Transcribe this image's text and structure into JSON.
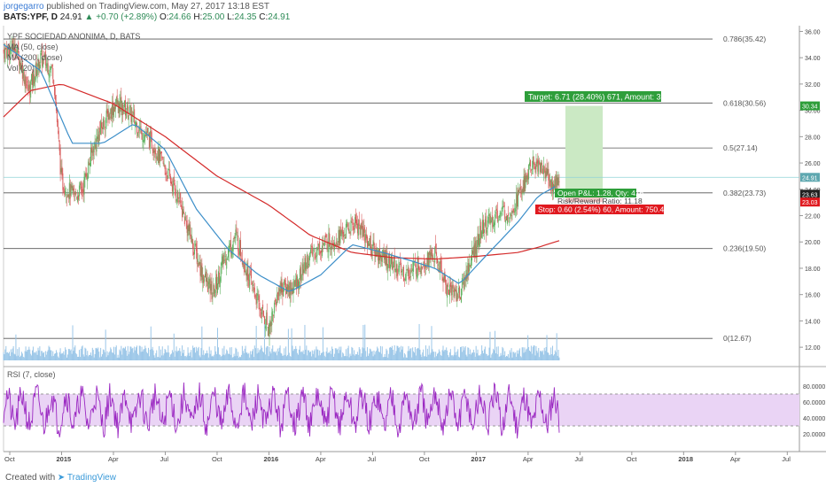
{
  "header": {
    "user": "jorgegarro",
    "published": "published on TradingView.com, May 27, 2017 13:18 EST",
    "symbol": "BATS:YPF, D",
    "price": "24.91",
    "change": "▲ +0.70 (+2.89%)",
    "o_label": "O:",
    "o_value": "24.66",
    "h_label": "H:",
    "h_value": "25.00",
    "l_label": "L:",
    "l_value": "24.35",
    "c_label": "C:",
    "c_value": "24.91"
  },
  "legend": {
    "title": "YPF SOCIEDAD ANONIMA, D, BATS",
    "ma50": "MA (50, close)",
    "ma200": "MA (200, close)",
    "vol": "Vol (20)",
    "rsi": "RSI (7, close)"
  },
  "footer": {
    "created_with": "Created with",
    "brand": "TradingView"
  },
  "colors": {
    "candle_up": "#5fb15f",
    "candle_down": "#d95a5a",
    "ma50": "#3d8fc9",
    "ma200": "#d42a2a",
    "fib": "#555555",
    "rsi": "#9b29c2",
    "rsi_band": "#ead4f5",
    "target_box": "#cbe9c4",
    "target_label": "#2e9e3a",
    "stop_label": "#e0191f"
  },
  "chart_data": [
    {
      "type": "candlestick",
      "title": "YPF SOCIEDAD ANONIMA, D, BATS",
      "x_ticks": [
        "Oct",
        "2015",
        "Apr",
        "Jul",
        "Oct",
        "2016",
        "Apr",
        "Jul",
        "Oct",
        "2017",
        "Apr",
        "Jul",
        "Oct",
        "2018",
        "Apr",
        "Jul"
      ],
      "y_ticks": [
        "36.00",
        "34.00",
        "32.00",
        "30.00",
        "28.00",
        "26.00",
        "24.00",
        "22.00",
        "20.00",
        "18.00",
        "16.00",
        "14.00",
        "12.00"
      ],
      "ylim": [
        11.0,
        36.3
      ],
      "fib_levels": [
        {
          "label": "0.786(35.42)",
          "value": 35.42
        },
        {
          "label": "0.618(30.56)",
          "value": 30.56
        },
        {
          "label": "0.5(27.14)",
          "value": 27.14
        },
        {
          "label": "0.382(23.73)",
          "value": 23.73
        },
        {
          "label": "0.236(19.50)",
          "value": 19.5
        },
        {
          "label": "0(12.67)",
          "value": 12.67
        }
      ],
      "price_series_anchors": [
        [
          2014.72,
          34.5
        ],
        [
          2014.78,
          34.8
        ],
        [
          2014.84,
          31.5
        ],
        [
          2014.9,
          34.0
        ],
        [
          2014.96,
          33.0
        ],
        [
          2015.0,
          24.5
        ],
        [
          2015.06,
          23.5
        ],
        [
          2015.1,
          24.0
        ],
        [
          2015.15,
          27.0
        ],
        [
          2015.2,
          29.0
        ],
        [
          2015.26,
          30.5
        ],
        [
          2015.32,
          30.0
        ],
        [
          2015.38,
          28.5
        ],
        [
          2015.44,
          27.5
        ],
        [
          2015.5,
          25.5
        ],
        [
          2015.56,
          23.5
        ],
        [
          2015.62,
          20.5
        ],
        [
          2015.68,
          17.5
        ],
        [
          2015.73,
          16.0
        ],
        [
          2015.78,
          18.5
        ],
        [
          2015.84,
          20.5
        ],
        [
          2015.9,
          17.5
        ],
        [
          2015.96,
          14.8
        ],
        [
          2016.0,
          13.5
        ],
        [
          2016.05,
          16.5
        ],
        [
          2016.12,
          16.5
        ],
        [
          2016.2,
          19.0
        ],
        [
          2016.28,
          20.0
        ],
        [
          2016.35,
          20.5
        ],
        [
          2016.42,
          21.5
        ],
        [
          2016.5,
          19.5
        ],
        [
          2016.58,
          18.5
        ],
        [
          2016.66,
          17.5
        ],
        [
          2016.74,
          18.5
        ],
        [
          2016.8,
          19.0
        ],
        [
          2016.86,
          16.5
        ],
        [
          2016.92,
          16.0
        ],
        [
          2016.97,
          18.5
        ],
        [
          2017.03,
          21.0
        ],
        [
          2017.1,
          22.0
        ],
        [
          2017.17,
          22.5
        ],
        [
          2017.22,
          24.0
        ],
        [
          2017.27,
          26.0
        ],
        [
          2017.33,
          25.5
        ],
        [
          2017.37,
          24.2
        ],
        [
          2017.4,
          24.91
        ]
      ],
      "ma200_anchors": [
        [
          2014.72,
          29.5
        ],
        [
          2014.85,
          31.5
        ],
        [
          2015.0,
          32.0
        ],
        [
          2015.25,
          30.5
        ],
        [
          2015.5,
          28.0
        ],
        [
          2015.75,
          25.0
        ],
        [
          2016.0,
          22.8
        ],
        [
          2016.2,
          20.5
        ],
        [
          2016.4,
          19.2
        ],
        [
          2016.6,
          18.8
        ],
        [
          2016.8,
          18.7
        ],
        [
          2017.0,
          18.9
        ],
        [
          2017.2,
          19.2
        ],
        [
          2017.3,
          19.6
        ],
        [
          2017.4,
          20.1
        ]
      ],
      "ma50_anchors": [
        [
          2014.72,
          35.0
        ],
        [
          2014.9,
          33.0
        ],
        [
          2015.05,
          27.5
        ],
        [
          2015.2,
          27.5
        ],
        [
          2015.35,
          29.0
        ],
        [
          2015.5,
          27.0
        ],
        [
          2015.65,
          22.5
        ],
        [
          2015.8,
          19.5
        ],
        [
          2015.95,
          17.5
        ],
        [
          2016.1,
          16.2
        ],
        [
          2016.25,
          17.5
        ],
        [
          2016.4,
          19.8
        ],
        [
          2016.55,
          19.2
        ],
        [
          2016.7,
          18.5
        ],
        [
          2016.8,
          18.0
        ],
        [
          2016.92,
          16.8
        ],
        [
          2017.05,
          19.0
        ],
        [
          2017.2,
          21.5
        ],
        [
          2017.3,
          23.5
        ],
        [
          2017.38,
          24.2
        ]
      ],
      "position": {
        "target_label": "Target: 6.71 (28.40%) 671, Amount: 3791.36",
        "open_label": "Open P&L: 1.28, Qty: 416",
        "risk_label": "Risk/Reward Ratio: 11.18",
        "stop_label": "Stop: 0.60 (2.54%) 60, Amount: 750.4",
        "entry_price": 23.63,
        "target_price": 30.34,
        "stop_price": 23.03,
        "current_price": 24.91
      },
      "price_tags": [
        "30.34",
        "24.91",
        "23.63",
        "23.03"
      ]
    },
    {
      "type": "line",
      "title": "RSI (7, close)",
      "y_ticks": [
        "80.0000",
        "60.0000",
        "40.0000",
        "20.0000"
      ],
      "ylim": [
        0,
        100
      ],
      "band": [
        30,
        70
      ]
    }
  ]
}
